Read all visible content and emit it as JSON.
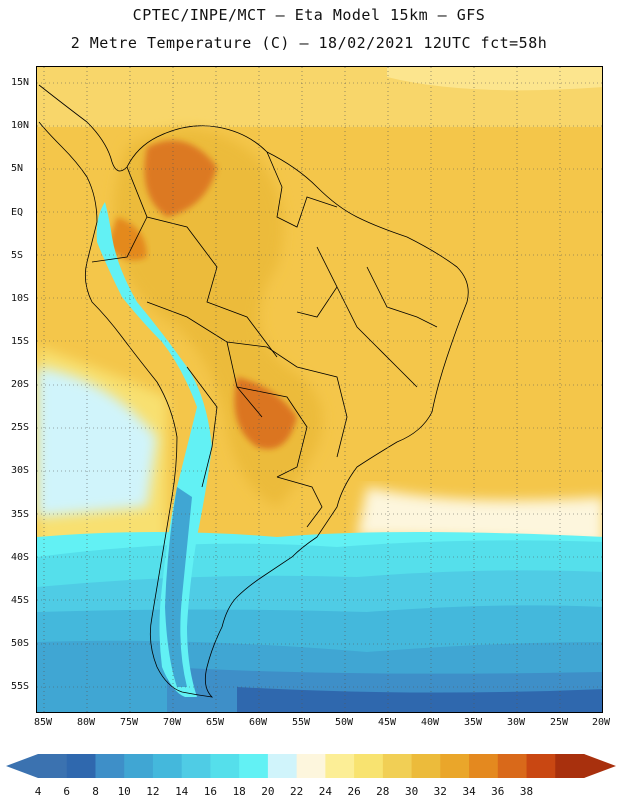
{
  "header": {
    "line1": "CPTEC/INPE/MCT –  Eta Model 15km – GFS",
    "line2": "2 Metre Temperature (C) – 18/02/2021 12UTC fct=58h"
  },
  "lat_labels": [
    "15N",
    "10N",
    "5N",
    "EQ",
    "5S",
    "10S",
    "15S",
    "20S",
    "25S",
    "30S",
    "35S",
    "40S",
    "45S",
    "50S",
    "55S"
  ],
  "lon_labels": [
    "85W",
    "80W",
    "75W",
    "70W",
    "65W",
    "60W",
    "55W",
    "50W",
    "45W",
    "40W",
    "35W",
    "30W",
    "25W",
    "20W"
  ],
  "colorbar": {
    "labels": [
      "4",
      "6",
      "8",
      "10",
      "12",
      "14",
      "16",
      "18",
      "20",
      "22",
      "24",
      "26",
      "28",
      "30",
      "32",
      "34",
      "36",
      "38"
    ],
    "colors": [
      "#3b72b0",
      "#2f68ae",
      "#3e8fc8",
      "#40a6d3",
      "#44b8dc",
      "#4fcce5",
      "#55dfeb",
      "#62f1f4",
      "#d0f4fb",
      "#fdf6dd",
      "#fcee96",
      "#f8e370",
      "#f1cf55",
      "#ecbb3b",
      "#eaa62a",
      "#e4891f",
      "#d9691a",
      "#c94712",
      "#a8300d"
    ],
    "low_color": "#3b72b0",
    "high_color": "#a8300d"
  }
}
